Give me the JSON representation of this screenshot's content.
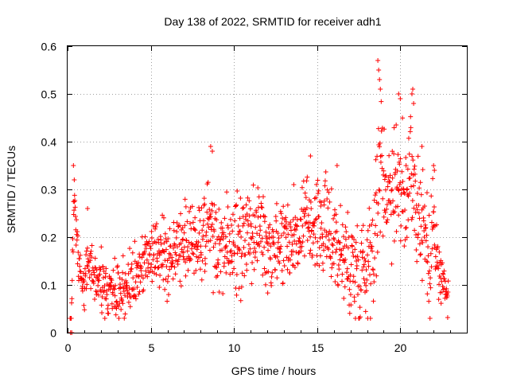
{
  "chart_data": {
    "type": "scatter",
    "title": "Day 138 of 2022, SRMTID for receiver adh1",
    "xlabel": "GPS time / hours",
    "ylabel": "SRMTID / TECUs",
    "xlim": [
      0,
      24
    ],
    "ylim": [
      0,
      0.6
    ],
    "x_ticks": [
      0,
      5,
      10,
      15,
      20
    ],
    "y_ticks": [
      0,
      0.1,
      0.2,
      0.3,
      0.4,
      0.5,
      0.6
    ],
    "x_tick_labels": [
      "0",
      "5",
      "10",
      "15",
      "20"
    ],
    "y_tick_labels": [
      "0",
      "0.1",
      "0.2",
      "0.3",
      "0.4",
      "0.5",
      "0.6"
    ],
    "grid": true,
    "marker": "plus",
    "color": "#ff0000",
    "series": [
      {
        "name": "SRMTID",
        "trend": [
          [
            0.2,
            0.0
          ],
          [
            0.4,
            0.3
          ],
          [
            0.6,
            0.17
          ],
          [
            0.8,
            0.12
          ],
          [
            1.0,
            0.08
          ],
          [
            1.2,
            0.18
          ],
          [
            1.5,
            0.13
          ],
          [
            2.0,
            0.11
          ],
          [
            2.5,
            0.08
          ],
          [
            3.0,
            0.08
          ],
          [
            3.5,
            0.1
          ],
          [
            4.0,
            0.12
          ],
          [
            4.5,
            0.13
          ],
          [
            5.0,
            0.17
          ],
          [
            5.5,
            0.16
          ],
          [
            6.0,
            0.15
          ],
          [
            6.5,
            0.17
          ],
          [
            7.0,
            0.2
          ],
          [
            7.5,
            0.21
          ],
          [
            8.0,
            0.19
          ],
          [
            8.5,
            0.23
          ],
          [
            9.0,
            0.17
          ],
          [
            9.5,
            0.18
          ],
          [
            10.0,
            0.19
          ],
          [
            10.5,
            0.19
          ],
          [
            11.0,
            0.2
          ],
          [
            11.5,
            0.22
          ],
          [
            12.0,
            0.19
          ],
          [
            12.5,
            0.19
          ],
          [
            13.0,
            0.2
          ],
          [
            13.5,
            0.2
          ],
          [
            14.0,
            0.2
          ],
          [
            14.5,
            0.24
          ],
          [
            15.0,
            0.22
          ],
          [
            15.5,
            0.22
          ],
          [
            16.0,
            0.2
          ],
          [
            16.5,
            0.16
          ],
          [
            17.0,
            0.14
          ],
          [
            17.5,
            0.13
          ],
          [
            18.0,
            0.15
          ],
          [
            18.5,
            0.22
          ],
          [
            18.8,
            0.36
          ],
          [
            19.2,
            0.3
          ],
          [
            19.6,
            0.31
          ],
          [
            20.0,
            0.33
          ],
          [
            20.3,
            0.22
          ],
          [
            20.6,
            0.38
          ],
          [
            21.0,
            0.26
          ],
          [
            21.5,
            0.22
          ],
          [
            21.8,
            0.1
          ],
          [
            22.0,
            0.28
          ],
          [
            22.3,
            0.12
          ],
          [
            22.6,
            0.1
          ],
          [
            22.8,
            0.08
          ]
        ],
        "spread": [
          [
            0,
            0.04
          ],
          [
            5,
            0.05
          ],
          [
            8,
            0.07
          ],
          [
            15,
            0.07
          ],
          [
            18.5,
            0.1
          ],
          [
            21,
            0.11
          ],
          [
            22,
            0.07
          ],
          [
            23,
            0.03
          ]
        ],
        "x_start": 0.15,
        "x_end": 22.9,
        "x_step": 0.018,
        "spikes": [
          {
            "x": 0.35,
            "y": 0.35
          },
          {
            "x": 0.4,
            "y": 0.32
          },
          {
            "x": 1.2,
            "y": 0.26
          },
          {
            "x": 8.6,
            "y": 0.39
          },
          {
            "x": 8.7,
            "y": 0.38
          },
          {
            "x": 14.6,
            "y": 0.37
          },
          {
            "x": 16.2,
            "y": 0.35
          },
          {
            "x": 18.65,
            "y": 0.57
          },
          {
            "x": 18.7,
            "y": 0.55
          },
          {
            "x": 18.75,
            "y": 0.53
          },
          {
            "x": 18.8,
            "y": 0.51
          },
          {
            "x": 19.9,
            "y": 0.5
          },
          {
            "x": 20.0,
            "y": 0.49
          },
          {
            "x": 20.75,
            "y": 0.51
          },
          {
            "x": 20.7,
            "y": 0.5
          },
          {
            "x": 20.8,
            "y": 0.48
          },
          {
            "x": 21.3,
            "y": 0.39
          },
          {
            "x": 22.0,
            "y": 0.35
          },
          {
            "x": 22.05,
            "y": 0.34
          }
        ]
      }
    ]
  }
}
